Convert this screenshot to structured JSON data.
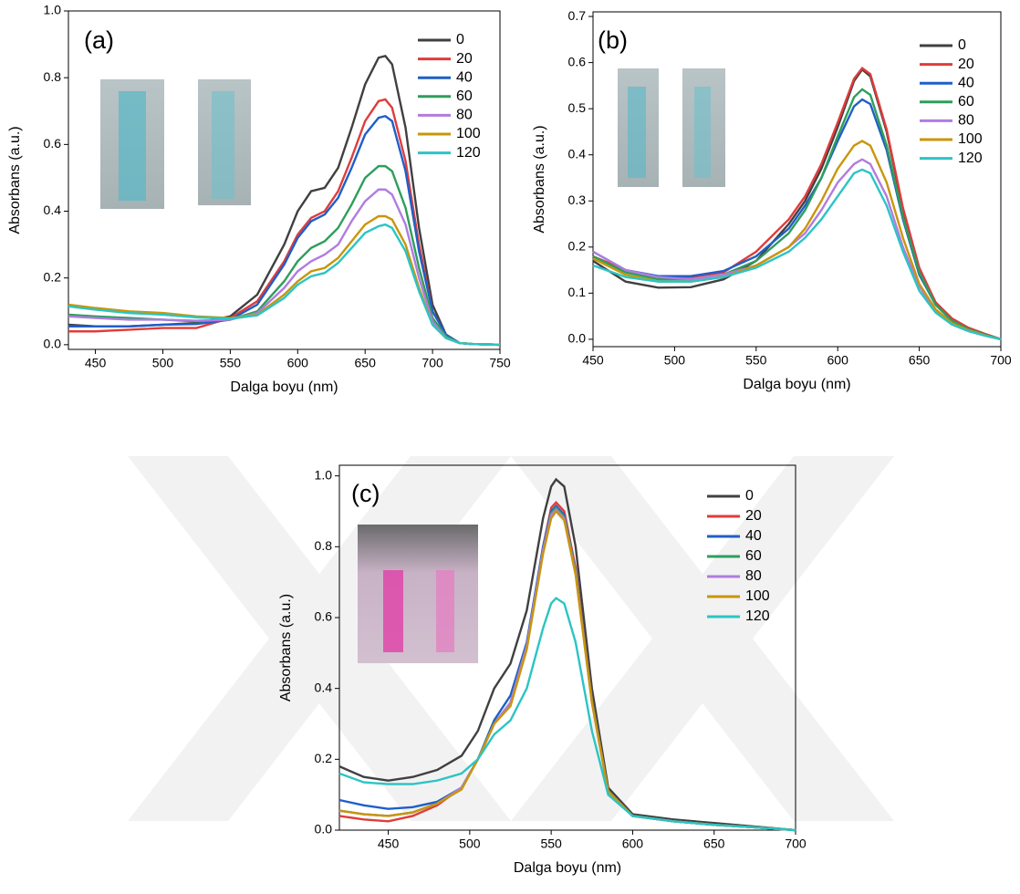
{
  "chart_data": [
    {
      "type": "line",
      "title": "(a)",
      "x_label": "Dalga boyu (nm)",
      "y_label": "Absorbans (a.u.)",
      "xlim": [
        430,
        750
      ],
      "xticks": [
        450,
        500,
        550,
        600,
        650,
        700,
        750
      ],
      "ylim": [
        -0.014,
        1.0
      ],
      "yticks": [
        {
          "value": 0,
          "label": "0.0"
        },
        0.2,
        0.4,
        0.6,
        0.8,
        {
          "value": 1,
          "label": "1.0"
        }
      ],
      "legend": "upper right",
      "x": [
        430,
        450,
        475,
        500,
        525,
        550,
        570,
        590,
        600,
        610,
        620,
        630,
        640,
        650,
        660,
        665,
        670,
        680,
        690,
        700,
        710,
        720,
        730,
        750
      ],
      "series": [
        {
          "name": "0",
          "color": "#404040",
          "values": [
            0.06,
            0.055,
            0.055,
            0.06,
            0.065,
            0.085,
            0.15,
            0.3,
            0.4,
            0.46,
            0.47,
            0.53,
            0.65,
            0.78,
            0.86,
            0.865,
            0.84,
            0.65,
            0.35,
            0.12,
            0.03,
            0.005,
            0.002,
            0.0
          ]
        },
        {
          "name": "20",
          "color": "#e03c3c",
          "values": [
            0.04,
            0.04,
            0.045,
            0.05,
            0.05,
            0.08,
            0.13,
            0.25,
            0.33,
            0.38,
            0.4,
            0.46,
            0.56,
            0.67,
            0.73,
            0.735,
            0.71,
            0.55,
            0.3,
            0.1,
            0.03,
            0.005,
            0.002,
            0.0
          ]
        },
        {
          "name": "40",
          "color": "#1f5fc8",
          "values": [
            0.055,
            0.055,
            0.055,
            0.06,
            0.062,
            0.075,
            0.12,
            0.24,
            0.32,
            0.37,
            0.39,
            0.44,
            0.53,
            0.63,
            0.68,
            0.685,
            0.67,
            0.52,
            0.28,
            0.1,
            0.03,
            0.005,
            0.002,
            0.0
          ]
        },
        {
          "name": "60",
          "color": "#2e9e5b",
          "values": [
            0.09,
            0.085,
            0.08,
            0.075,
            0.07,
            0.075,
            0.1,
            0.19,
            0.25,
            0.29,
            0.31,
            0.35,
            0.42,
            0.5,
            0.535,
            0.535,
            0.52,
            0.41,
            0.23,
            0.08,
            0.025,
            0.005,
            0.002,
            0.0
          ]
        },
        {
          "name": "80",
          "color": "#b07ce0",
          "values": [
            0.085,
            0.08,
            0.075,
            0.075,
            0.072,
            0.075,
            0.095,
            0.17,
            0.22,
            0.25,
            0.27,
            0.3,
            0.37,
            0.43,
            0.465,
            0.465,
            0.45,
            0.36,
            0.2,
            0.07,
            0.02,
            0.005,
            0.002,
            0.0
          ]
        },
        {
          "name": "100",
          "color": "#c8960a",
          "values": [
            0.12,
            0.11,
            0.1,
            0.095,
            0.085,
            0.08,
            0.09,
            0.15,
            0.19,
            0.22,
            0.23,
            0.26,
            0.31,
            0.36,
            0.385,
            0.385,
            0.375,
            0.3,
            0.17,
            0.06,
            0.02,
            0.005,
            0.002,
            0.0
          ]
        },
        {
          "name": "120",
          "color": "#2cc4c4",
          "values": [
            0.115,
            0.105,
            0.095,
            0.09,
            0.082,
            0.078,
            0.088,
            0.14,
            0.18,
            0.205,
            0.215,
            0.245,
            0.29,
            0.335,
            0.355,
            0.36,
            0.35,
            0.28,
            0.16,
            0.06,
            0.02,
            0.005,
            0.002,
            0.0
          ]
        }
      ]
    },
    {
      "type": "line",
      "title": "(b)",
      "x_label": "Dalga boyu (nm)",
      "y_label": "Absorbans (a.u.)",
      "xlim": [
        450,
        700
      ],
      "xticks": [
        450,
        500,
        550,
        600,
        650,
        700
      ],
      "ylim": [
        -0.016,
        0.71
      ],
      "yticks": [
        {
          "value": 0,
          "label": "0.0"
        },
        0.1,
        0.2,
        0.3,
        0.4,
        0.5,
        0.6,
        0.7
      ],
      "legend": "upper right",
      "x": [
        450,
        470,
        490,
        510,
        530,
        550,
        570,
        580,
        590,
        600,
        610,
        615,
        620,
        630,
        640,
        650,
        660,
        670,
        680,
        690,
        700
      ],
      "series": [
        {
          "name": "0",
          "color": "#404040",
          "values": [
            0.17,
            0.125,
            0.112,
            0.113,
            0.13,
            0.17,
            0.25,
            0.3,
            0.37,
            0.46,
            0.56,
            0.585,
            0.57,
            0.45,
            0.28,
            0.15,
            0.08,
            0.045,
            0.025,
            0.012,
            0.0
          ]
        },
        {
          "name": "20",
          "color": "#e03c3c",
          "values": [
            0.18,
            0.15,
            0.135,
            0.135,
            0.145,
            0.19,
            0.26,
            0.31,
            0.38,
            0.47,
            0.565,
            0.588,
            0.575,
            0.455,
            0.285,
            0.155,
            0.08,
            0.045,
            0.025,
            0.012,
            0.0
          ]
        },
        {
          "name": "40",
          "color": "#1f5fc8",
          "values": [
            0.19,
            0.15,
            0.137,
            0.137,
            0.148,
            0.18,
            0.24,
            0.29,
            0.35,
            0.43,
            0.505,
            0.52,
            0.51,
            0.41,
            0.26,
            0.14,
            0.075,
            0.04,
            0.022,
            0.01,
            0.0
          ]
        },
        {
          "name": "60",
          "color": "#2e9e5b",
          "values": [
            0.18,
            0.145,
            0.13,
            0.13,
            0.14,
            0.17,
            0.23,
            0.28,
            0.35,
            0.44,
            0.525,
            0.542,
            0.53,
            0.42,
            0.265,
            0.145,
            0.075,
            0.04,
            0.022,
            0.01,
            0.0
          ]
        },
        {
          "name": "80",
          "color": "#b07ce0",
          "values": [
            0.19,
            0.15,
            0.135,
            0.13,
            0.14,
            0.16,
            0.2,
            0.23,
            0.28,
            0.34,
            0.38,
            0.39,
            0.38,
            0.31,
            0.2,
            0.115,
            0.06,
            0.032,
            0.018,
            0.008,
            0.0
          ]
        },
        {
          "name": "100",
          "color": "#c8960a",
          "values": [
            0.175,
            0.14,
            0.125,
            0.125,
            0.135,
            0.16,
            0.2,
            0.24,
            0.3,
            0.37,
            0.42,
            0.43,
            0.42,
            0.34,
            0.22,
            0.12,
            0.065,
            0.035,
            0.02,
            0.009,
            0.0
          ]
        },
        {
          "name": "120",
          "color": "#2cc4c4",
          "values": [
            0.16,
            0.135,
            0.125,
            0.125,
            0.135,
            0.155,
            0.19,
            0.22,
            0.26,
            0.31,
            0.36,
            0.368,
            0.36,
            0.29,
            0.19,
            0.105,
            0.058,
            0.032,
            0.018,
            0.008,
            0.0
          ]
        }
      ]
    },
    {
      "type": "line",
      "title": "(c)",
      "x_label": "Dalga boyu (nm)",
      "y_label": "Absorbans (a.u.)",
      "xlim": [
        420,
        700
      ],
      "xticks": [
        450,
        500,
        550,
        600,
        650,
        700
      ],
      "ylim": [
        0,
        1.03
      ],
      "yticks": [
        {
          "value": 0,
          "label": "0.0"
        },
        0.2,
        0.4,
        0.6,
        0.8,
        {
          "value": 1,
          "label": "1.0"
        }
      ],
      "legend": "upper right",
      "x": [
        420,
        435,
        450,
        465,
        480,
        495,
        505,
        515,
        525,
        535,
        545,
        550,
        553,
        558,
        565,
        575,
        585,
        600,
        625,
        650,
        675,
        700
      ],
      "series": [
        {
          "name": "0",
          "color": "#404040",
          "values": [
            0.18,
            0.15,
            0.14,
            0.15,
            0.17,
            0.21,
            0.28,
            0.4,
            0.47,
            0.62,
            0.88,
            0.97,
            0.99,
            0.97,
            0.8,
            0.4,
            0.12,
            0.045,
            0.03,
            0.02,
            0.01,
            0.0
          ]
        },
        {
          "name": "20",
          "color": "#e03c3c",
          "values": [
            0.04,
            0.03,
            0.025,
            0.04,
            0.07,
            0.12,
            0.2,
            0.3,
            0.36,
            0.52,
            0.8,
            0.91,
            0.925,
            0.9,
            0.74,
            0.37,
            0.11,
            0.04,
            0.025,
            0.015,
            0.008,
            0.0
          ]
        },
        {
          "name": "40",
          "color": "#1f5fc8",
          "values": [
            0.085,
            0.07,
            0.06,
            0.065,
            0.08,
            0.12,
            0.2,
            0.31,
            0.38,
            0.53,
            0.8,
            0.9,
            0.915,
            0.89,
            0.73,
            0.365,
            0.11,
            0.04,
            0.025,
            0.015,
            0.008,
            0.0
          ]
        },
        {
          "name": "60",
          "color": "#2e9e5b",
          "values": [
            0.055,
            0.045,
            0.04,
            0.05,
            0.075,
            0.12,
            0.2,
            0.3,
            0.36,
            0.52,
            0.79,
            0.895,
            0.91,
            0.885,
            0.73,
            0.365,
            0.11,
            0.04,
            0.025,
            0.015,
            0.008,
            0.0
          ]
        },
        {
          "name": "80",
          "color": "#b07ce0",
          "values": [
            0.055,
            0.045,
            0.04,
            0.05,
            0.075,
            0.12,
            0.2,
            0.3,
            0.36,
            0.52,
            0.79,
            0.89,
            0.905,
            0.88,
            0.725,
            0.36,
            0.11,
            0.04,
            0.025,
            0.015,
            0.008,
            0.0
          ]
        },
        {
          "name": "100",
          "color": "#c8960a",
          "values": [
            0.055,
            0.045,
            0.04,
            0.05,
            0.075,
            0.115,
            0.2,
            0.3,
            0.35,
            0.51,
            0.78,
            0.88,
            0.9,
            0.875,
            0.72,
            0.36,
            0.11,
            0.04,
            0.025,
            0.015,
            0.008,
            0.0
          ]
        },
        {
          "name": "120",
          "color": "#2cc4c4",
          "values": [
            0.16,
            0.135,
            0.13,
            0.13,
            0.14,
            0.16,
            0.2,
            0.27,
            0.31,
            0.4,
            0.57,
            0.64,
            0.655,
            0.64,
            0.53,
            0.28,
            0.1,
            0.04,
            0.025,
            0.015,
            0.008,
            0.0
          ]
        }
      ]
    }
  ]
}
